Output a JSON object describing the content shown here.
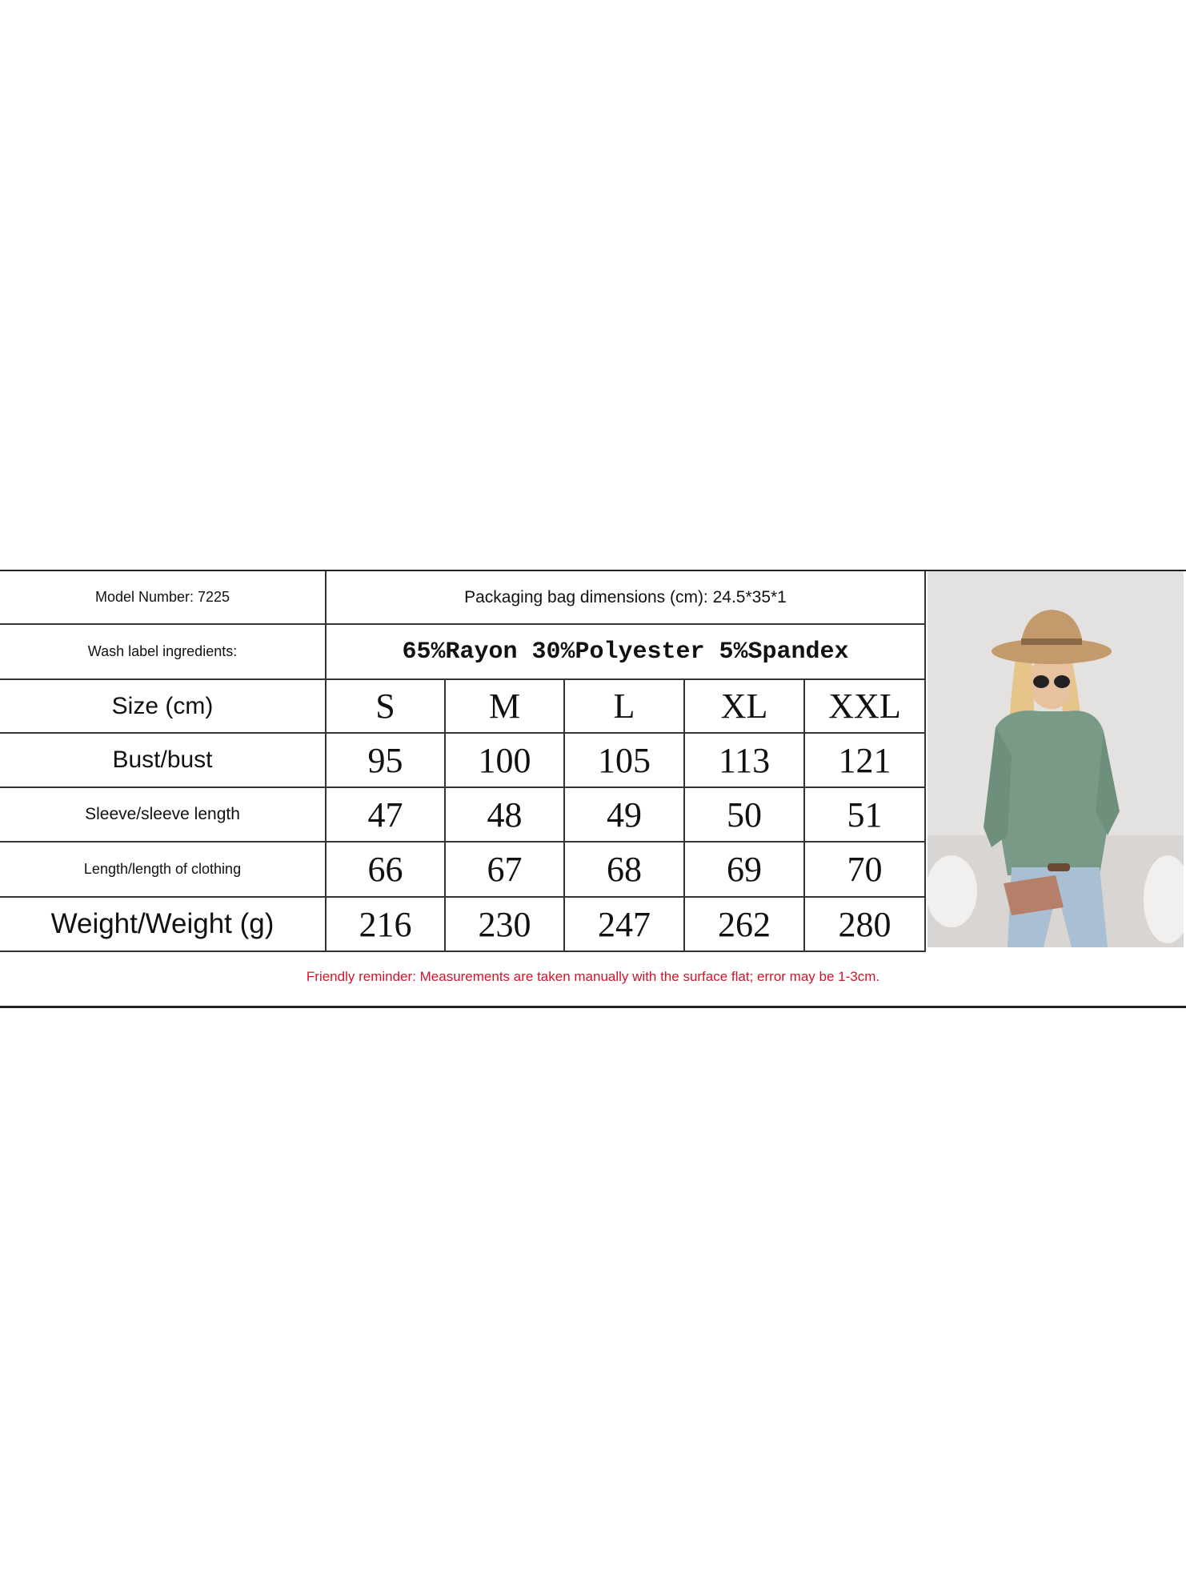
{
  "header": {
    "model_number": "Model Number: 7225",
    "packaging": "Packaging bag dimensions (cm): 24.5*35*1",
    "wash_label": "Wash label ingredients:",
    "ingredients": "65%Rayon 30%Polyester 5%Spandex"
  },
  "size_table": {
    "header_label": "Size (cm)",
    "sizes": [
      "S",
      "M",
      "L",
      "XL",
      "XXL"
    ],
    "rows": [
      {
        "label": "Bust/bust",
        "values": [
          "95",
          "100",
          "105",
          "113",
          "121"
        ]
      },
      {
        "label": "Sleeve/sleeve length",
        "values": [
          "47",
          "48",
          "49",
          "50",
          "51"
        ]
      },
      {
        "label": "Length/length of clothing",
        "values": [
          "66",
          "67",
          "68",
          "69",
          "70"
        ]
      },
      {
        "label": "Weight/Weight (g)",
        "values": [
          "216",
          "230",
          "247",
          "262",
          "280"
        ]
      }
    ]
  },
  "reminder": "Friendly reminder: Measurements are taken manually with the surface flat; error may be 1-3cm.",
  "colors": {
    "reminder": "#d0142c",
    "shirt": "#7a9a88",
    "hat": "#c39a6b",
    "jeans": "#a9bfd3"
  }
}
